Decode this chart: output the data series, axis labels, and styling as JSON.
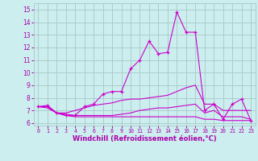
{
  "xlabel": "Windchill (Refroidissement éolien,°C)",
  "x": [
    0,
    1,
    2,
    3,
    4,
    5,
    6,
    7,
    8,
    9,
    10,
    11,
    12,
    13,
    14,
    15,
    16,
    17,
    18,
    19,
    20,
    21,
    22,
    23
  ],
  "line1": [
    7.3,
    7.4,
    6.8,
    6.6,
    6.6,
    7.3,
    7.5,
    8.3,
    8.5,
    8.5,
    10.3,
    11.0,
    12.5,
    11.5,
    11.6,
    14.8,
    13.2,
    13.2,
    7.0,
    7.5,
    6.3,
    7.5,
    7.9,
    6.2
  ],
  "line2": [
    7.3,
    7.3,
    6.8,
    6.8,
    7.0,
    7.2,
    7.4,
    7.5,
    7.6,
    7.8,
    7.9,
    7.9,
    8.0,
    8.1,
    8.2,
    8.5,
    8.8,
    9.0,
    7.5,
    7.5,
    7.0,
    7.0,
    7.0,
    7.0
  ],
  "line3": [
    7.3,
    7.2,
    6.8,
    6.6,
    6.5,
    6.5,
    6.5,
    6.5,
    6.5,
    6.5,
    6.5,
    6.5,
    6.5,
    6.5,
    6.5,
    6.5,
    6.5,
    6.5,
    6.3,
    6.3,
    6.2,
    6.2,
    6.2,
    6.2
  ],
  "line4": [
    7.3,
    7.3,
    6.8,
    6.7,
    6.6,
    6.6,
    6.6,
    6.6,
    6.6,
    6.7,
    6.8,
    7.0,
    7.1,
    7.2,
    7.2,
    7.3,
    7.4,
    7.5,
    6.8,
    7.0,
    6.5,
    6.5,
    6.5,
    6.3
  ],
  "line_color": "#cc00cc",
  "bg_color": "#cceeee",
  "grid_color": "#aacccc",
  "axis_color": "#aa00aa",
  "ylim": [
    5.8,
    15.5
  ],
  "xlim": [
    -0.5,
    23.5
  ],
  "yticks": [
    6,
    7,
    8,
    9,
    10,
    11,
    12,
    13,
    14,
    15
  ],
  "xticks": [
    0,
    1,
    2,
    3,
    4,
    5,
    6,
    7,
    8,
    9,
    10,
    11,
    12,
    13,
    14,
    15,
    16,
    17,
    18,
    19,
    20,
    21,
    22,
    23
  ],
  "tick_fontsize": 5.5,
  "xlabel_fontsize": 6.0
}
